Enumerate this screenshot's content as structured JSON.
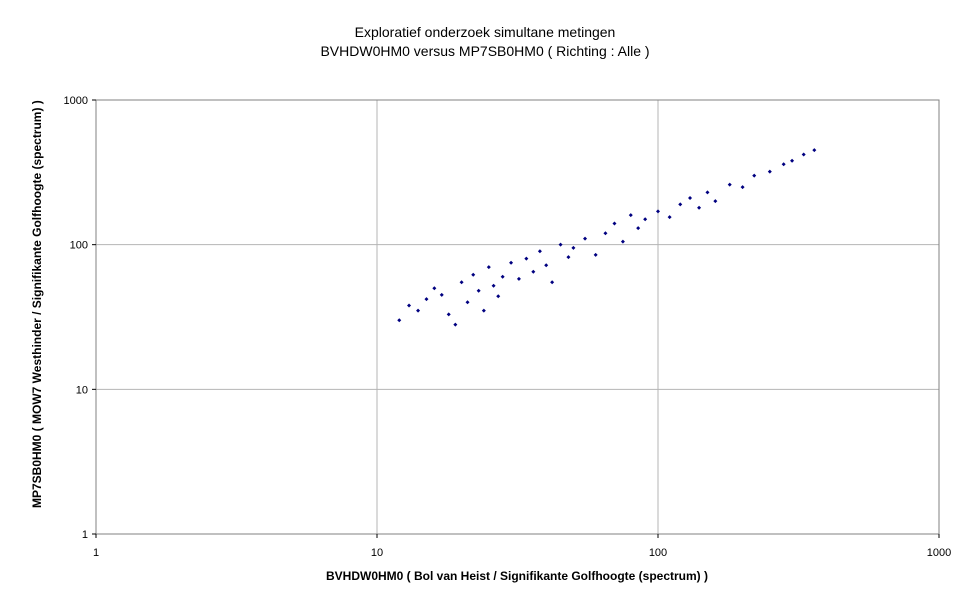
{
  "chart_data": {
    "type": "scatter",
    "title": "Exploratief onderzoek simultane metingen",
    "subtitle": "BVHDW0HM0 versus MP7SB0HM0 ( Richting : Alle )",
    "xlabel": "BVHDW0HM0 ( Bol van Heist / Signifikante Golfhoogte (spectrum) )",
    "ylabel": "MP7SB0HM0 ( MOW7 Westhinder / Signifikante Golfhoogte (spectrum) )",
    "x_scale": "log",
    "y_scale": "log",
    "xlim": [
      1,
      1000
    ],
    "ylim": [
      1,
      1000
    ],
    "x_ticks": [
      "1",
      "10",
      "100",
      "1000"
    ],
    "y_ticks": [
      "1",
      "10",
      "100",
      "1000"
    ],
    "grid": true,
    "legend": "none",
    "marker": "small diamond",
    "marker_color": "#000080",
    "approx_range": {
      "x": [
        12,
        370
      ],
      "y": [
        20,
        540
      ]
    },
    "series": [
      {
        "points": [
          [
            12,
            30
          ],
          [
            13,
            38
          ],
          [
            14,
            35
          ],
          [
            15,
            42
          ],
          [
            16,
            50
          ],
          [
            17,
            45
          ],
          [
            18,
            33
          ],
          [
            19,
            28
          ],
          [
            20,
            55
          ],
          [
            21,
            40
          ],
          [
            22,
            62
          ],
          [
            23,
            48
          ],
          [
            24,
            35
          ],
          [
            25,
            70
          ],
          [
            26,
            52
          ],
          [
            27,
            44
          ],
          [
            28,
            60
          ],
          [
            30,
            75
          ],
          [
            32,
            58
          ],
          [
            34,
            80
          ],
          [
            36,
            65
          ],
          [
            38,
            90
          ],
          [
            40,
            72
          ],
          [
            42,
            55
          ],
          [
            45,
            100
          ],
          [
            48,
            82
          ],
          [
            50,
            95
          ],
          [
            55,
            110
          ],
          [
            60,
            85
          ],
          [
            65,
            120
          ],
          [
            70,
            140
          ],
          [
            75,
            105
          ],
          [
            80,
            160
          ],
          [
            85,
            130
          ],
          [
            90,
            150
          ],
          [
            100,
            170
          ],
          [
            110,
            155
          ],
          [
            120,
            190
          ],
          [
            130,
            210
          ],
          [
            140,
            180
          ],
          [
            150,
            230
          ],
          [
            160,
            200
          ],
          [
            180,
            260
          ],
          [
            200,
            250
          ],
          [
            220,
            300
          ],
          [
            250,
            320
          ],
          [
            280,
            360
          ],
          [
            300,
            380
          ],
          [
            330,
            420
          ],
          [
            360,
            450
          ]
        ]
      }
    ]
  }
}
